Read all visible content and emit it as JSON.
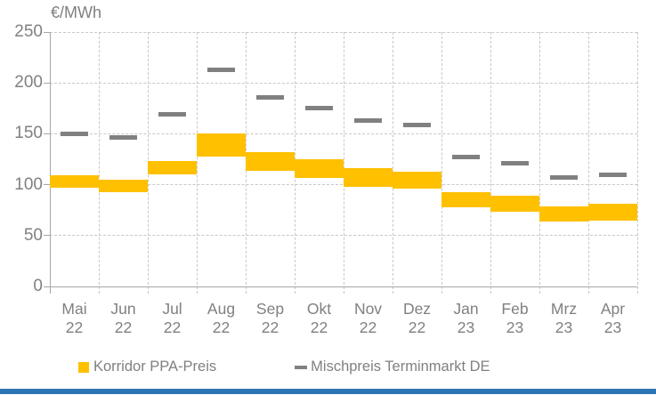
{
  "chart": {
    "unit_label": "€/MWh",
    "y_axis": {
      "ticks": [
        250,
        200,
        150,
        100,
        50,
        0
      ]
    },
    "legend": [
      {
        "label": "Korridor PPA-Preis",
        "marker": "square",
        "color": "#FFC000"
      },
      {
        "label": "Mischpreis Terminmarkt DE",
        "marker": "dash",
        "color": "#808080"
      }
    ],
    "colors": {
      "korridor": "#FFC000",
      "mischpreis": "#808080",
      "gridline": "#C8C8C8",
      "axis_line": "#A6A6A6",
      "axis_text": "#808080",
      "bottom_accent_bar": "#2E75B6"
    }
  },
  "chart_data": {
    "type": "bar",
    "subtype": "floating-range-bands-with-dash-markers",
    "title": "€/MWh",
    "xlabel": "",
    "ylabel": "€/MWh",
    "ylim": [
      0,
      250
    ],
    "y_step": 50,
    "grid": true,
    "legend_position": "bottom",
    "categories": [
      "Mai 22",
      "Jun 22",
      "Jul 22",
      "Aug 22",
      "Sep 22",
      "Okt 22",
      "Nov 22",
      "Dez 22",
      "Jan 23",
      "Feb 23",
      "Mrz 23",
      "Apr 23"
    ],
    "series": [
      {
        "name": "Korridor PPA-Preis",
        "type": "range_band",
        "color": "#FFC000",
        "low": [
          97,
          93,
          110,
          128,
          114,
          107,
          98,
          96,
          78,
          73,
          64,
          65
        ],
        "high": [
          109,
          105,
          123,
          150,
          132,
          125,
          116,
          113,
          93,
          89,
          79,
          81
        ]
      },
      {
        "name": "Mischpreis Terminmarkt DE",
        "type": "dash_marker",
        "color": "#808080",
        "values": [
          150,
          146,
          169,
          213,
          186,
          175,
          163,
          159,
          127,
          121,
          107,
          110
        ]
      }
    ]
  }
}
